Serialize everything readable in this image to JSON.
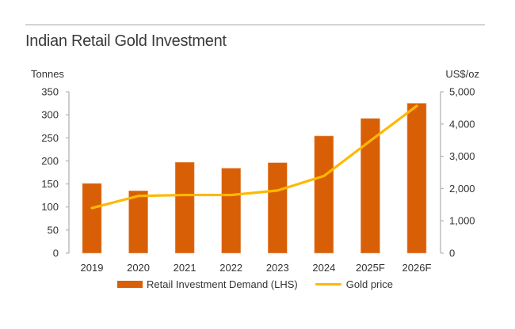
{
  "chart_data": {
    "type": "bar",
    "title": "Indian Retail Gold Investment",
    "categories": [
      "2019",
      "2020",
      "2021",
      "2022",
      "2023",
      "2024",
      "2025F",
      "2026F"
    ],
    "series": [
      {
        "name": "Retail Investment Demand (LHS)",
        "type": "bar",
        "axis": "left",
        "color": "#d95f06",
        "values": [
          151,
          135,
          197,
          184,
          196,
          254,
          292,
          325
        ]
      },
      {
        "name": "Gold price",
        "type": "line",
        "axis": "right",
        "color": "#ffb800",
        "values": [
          1395,
          1770,
          1800,
          1800,
          1940,
          2390,
          3480,
          4560
        ]
      }
    ],
    "ylabel_left": "Tonnes",
    "ylabel_right": "US$/oz",
    "ylim_left": [
      0,
      350
    ],
    "ylim_right": [
      0,
      5000
    ],
    "yticks_left": [
      "0",
      "50",
      "100",
      "150",
      "200",
      "250",
      "300",
      "350"
    ],
    "yticks_right": [
      "0",
      "1,000",
      "2,000",
      "3,000",
      "4,000",
      "5,000"
    ],
    "grid": false,
    "legend_position": "bottom"
  },
  "legend": {
    "bar_label": "Retail Investment Demand (LHS)",
    "line_label": "Gold price"
  }
}
